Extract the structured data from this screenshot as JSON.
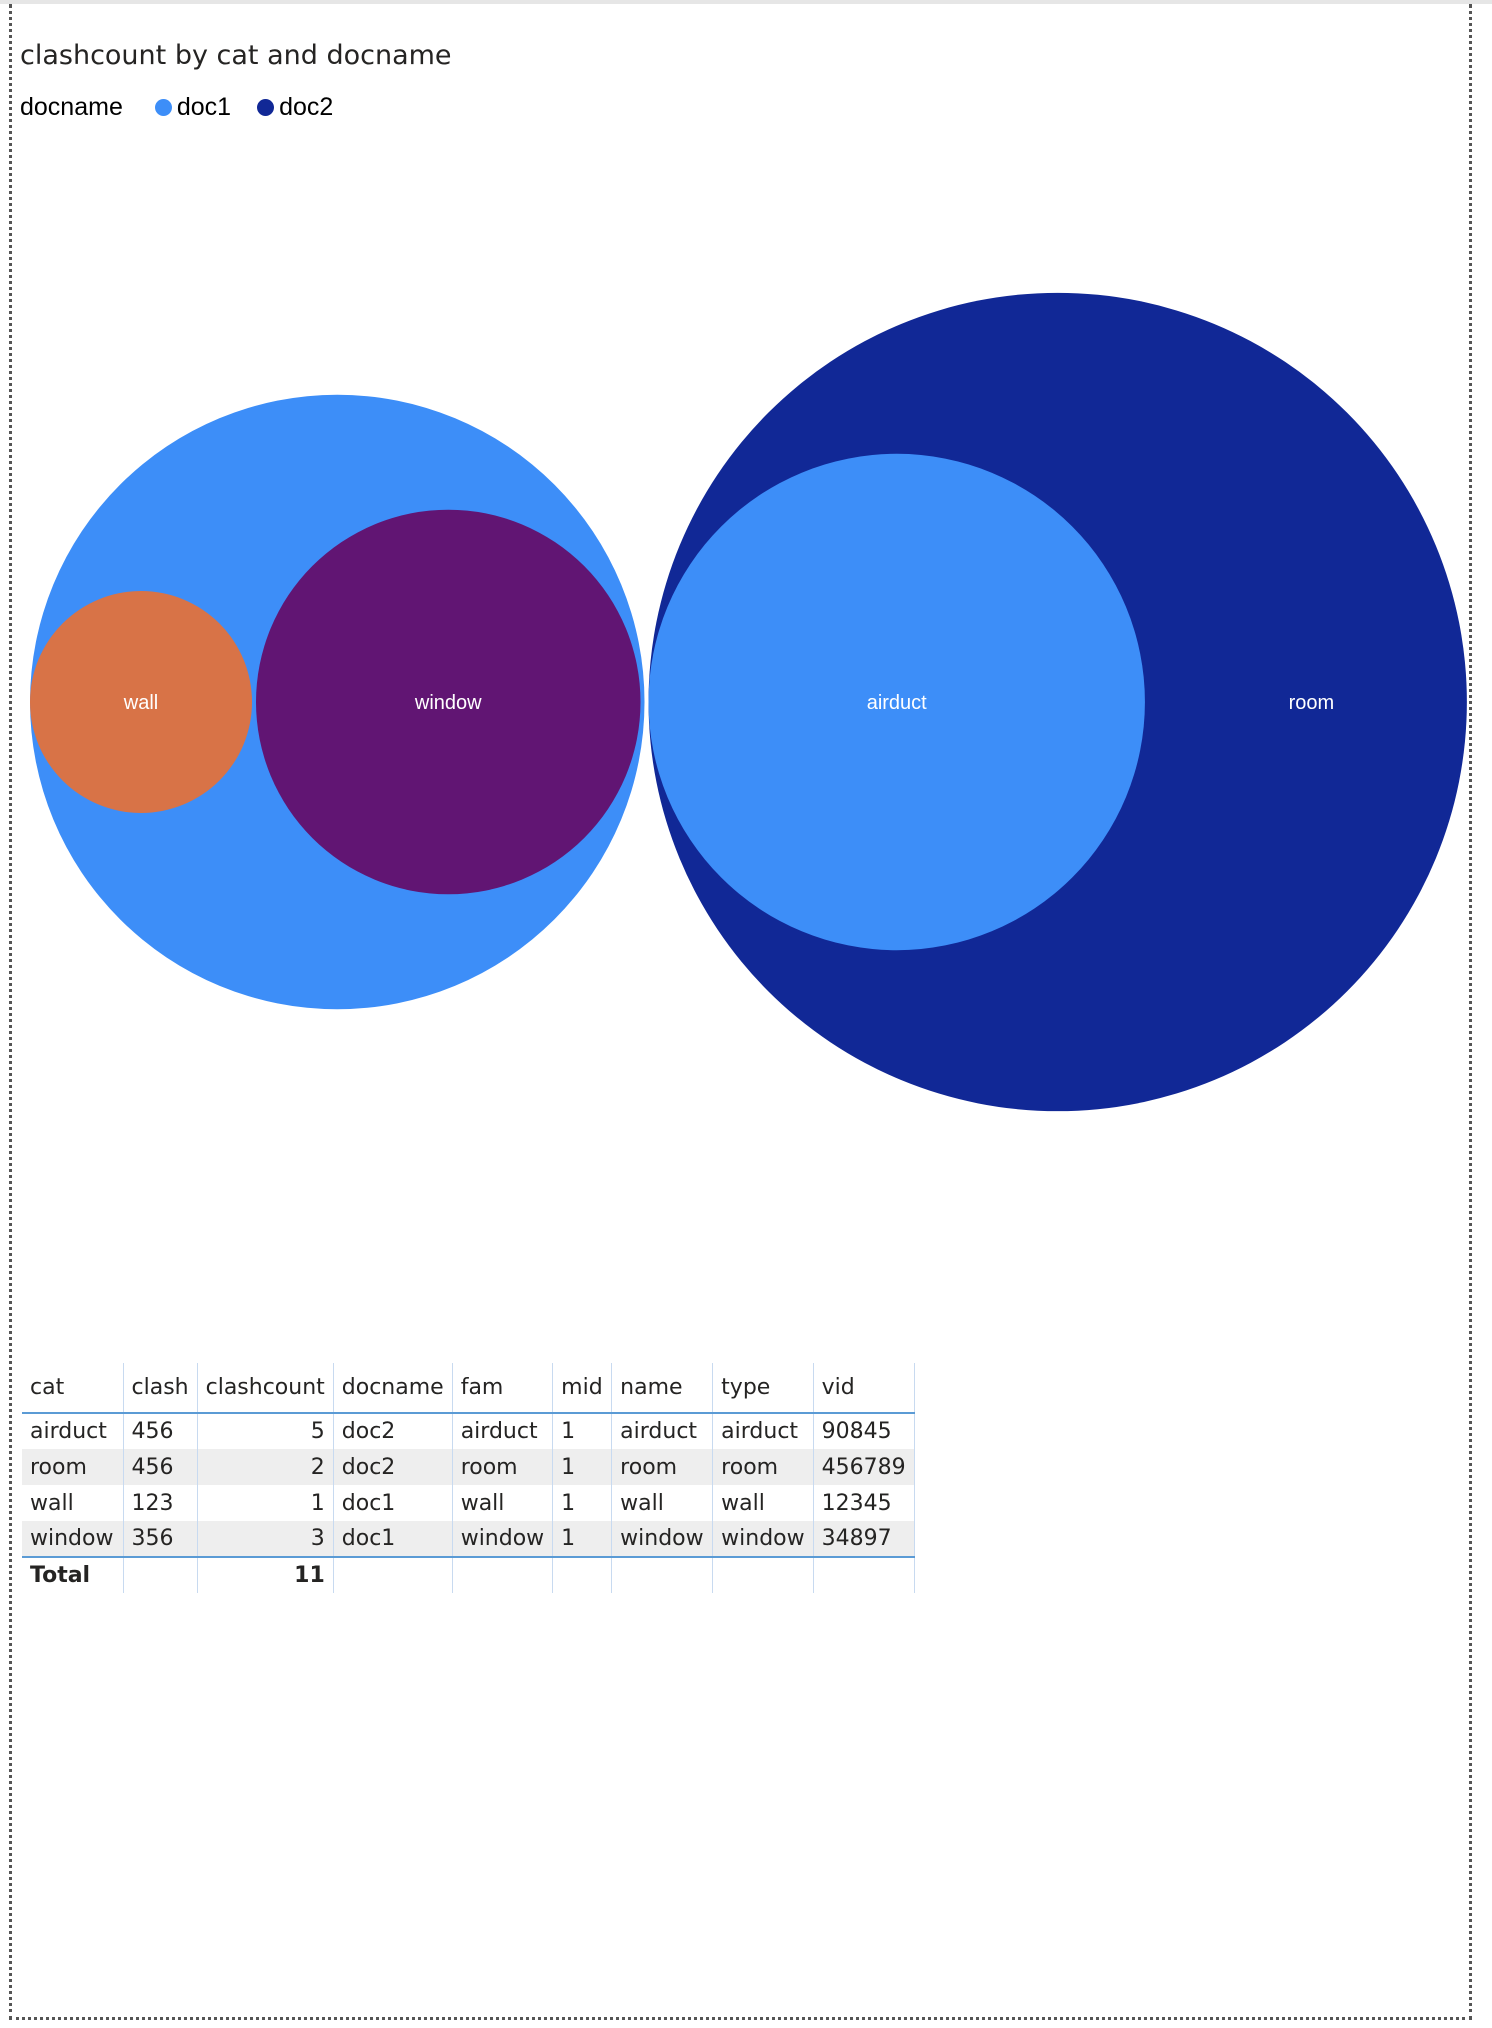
{
  "title": "clashcount by cat and docname",
  "legend": {
    "title": "docname",
    "items": [
      {
        "label": "doc1",
        "color": "#3d8ef8"
      },
      {
        "label": "doc2",
        "color": "#112896"
      }
    ]
  },
  "chart_data": {
    "type": "packed-bubble",
    "groups": [
      {
        "name": "doc1",
        "color": "#3d8ef8",
        "children": [
          {
            "label": "wall",
            "value": 1,
            "color": "#d87347"
          },
          {
            "label": "window",
            "value": 3,
            "color": "#611573"
          }
        ]
      },
      {
        "name": "doc2",
        "color": "#112896",
        "children": [
          {
            "label": "airduct",
            "value": 5,
            "color": "#3d8ef8"
          },
          {
            "label": "room",
            "value": 2,
            "color": "#112896"
          }
        ]
      }
    ]
  },
  "table": {
    "columns": [
      "cat",
      "clash",
      "clashcount",
      "docname",
      "fam",
      "mid",
      "name",
      "type",
      "vid"
    ],
    "rows": [
      [
        "airduct",
        "456",
        "5",
        "doc2",
        "airduct",
        "1",
        "airduct",
        "airduct",
        "90845"
      ],
      [
        "room",
        "456",
        "2",
        "doc2",
        "room",
        "1",
        "room",
        "room",
        "456789"
      ],
      [
        "wall",
        "123",
        "1",
        "doc1",
        "wall",
        "1",
        "wall",
        "wall",
        "12345"
      ],
      [
        "window",
        "356",
        "3",
        "doc1",
        "window",
        "1",
        "window",
        "window",
        "34897"
      ]
    ],
    "total": {
      "label": "Total",
      "clashcount": "11"
    }
  }
}
